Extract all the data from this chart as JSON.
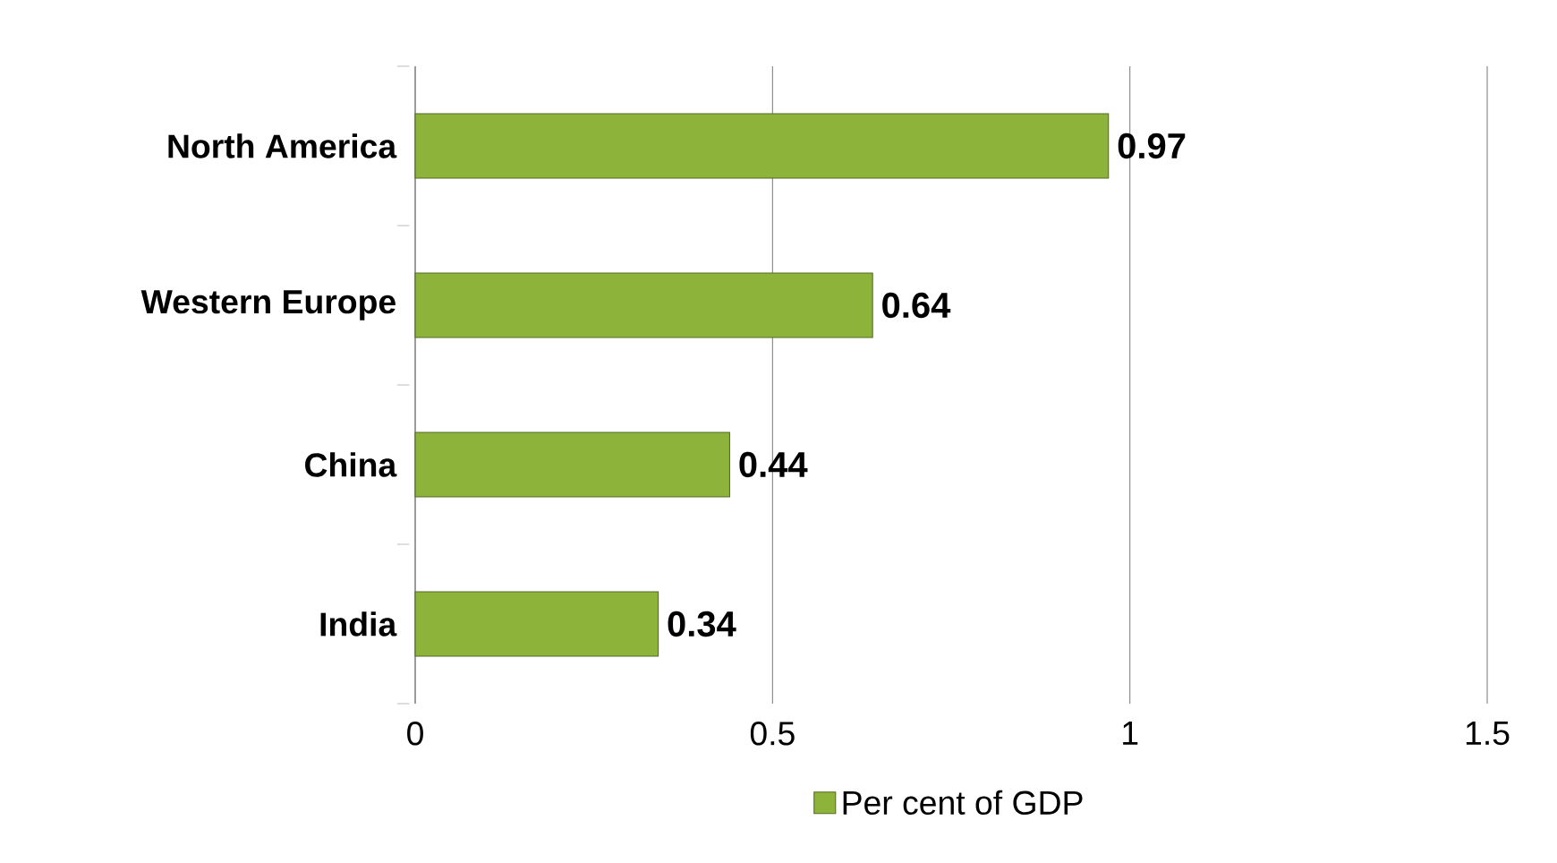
{
  "chart_data": {
    "type": "bar",
    "orientation": "horizontal",
    "categories": [
      "North America",
      "Western Europe",
      "China",
      "India"
    ],
    "series": [
      {
        "name": "Per cent of GDP",
        "color": "#8db33a",
        "values": [
          0.97,
          0.64,
          0.44,
          0.34
        ]
      }
    ],
    "xlim": [
      0,
      1.5
    ],
    "xticks": [
      0,
      0.5,
      1,
      1.5
    ],
    "grid": "x",
    "legend": "bottom",
    "data_labels": true
  }
}
